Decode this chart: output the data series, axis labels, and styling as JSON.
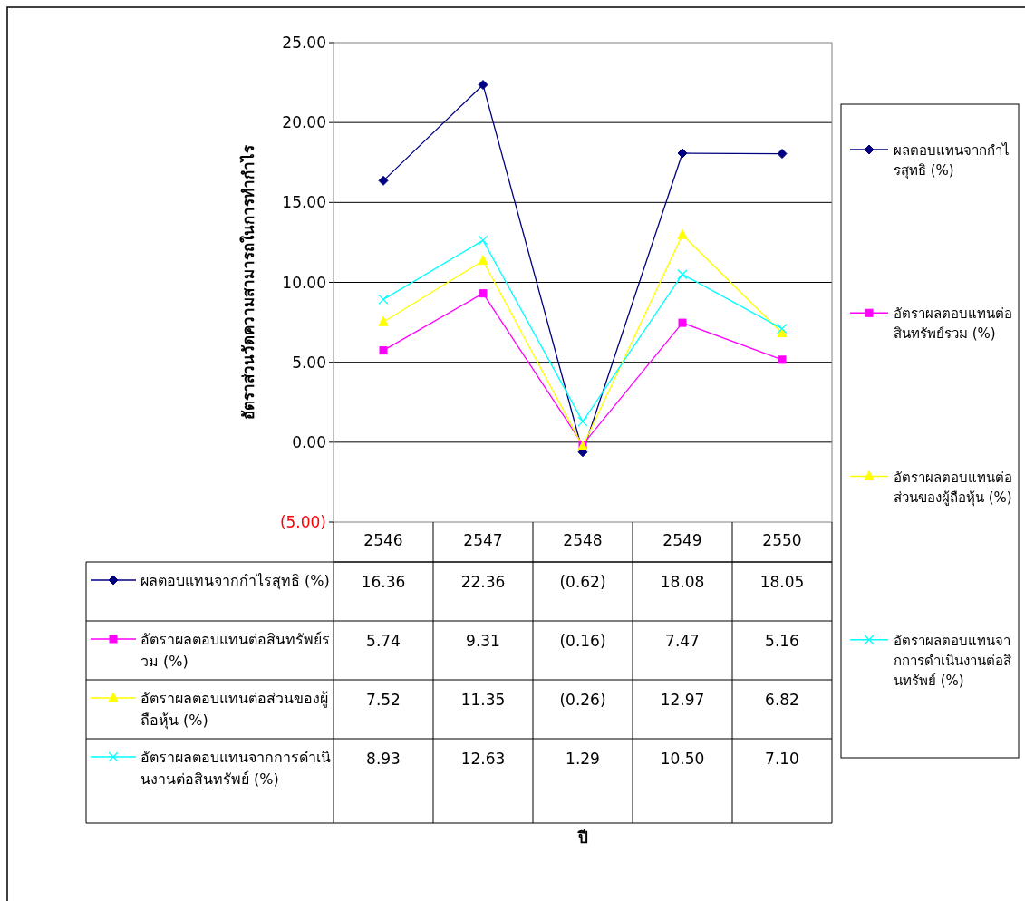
{
  "chart_data": {
    "type": "line",
    "ylabel": "อัตราส่วนวัดความสามารถในการทำกำไร",
    "annotations": [
      "ปี"
    ],
    "categories": [
      "2546",
      "2547",
      "2548",
      "2549",
      "2550"
    ],
    "series": [
      {
        "name": "ผลตอบแทนจากกำไรสุทธิ (%)",
        "color": "#000080",
        "marker": "diamond",
        "values": [
          16.36,
          22.36,
          -0.62,
          18.08,
          18.05
        ],
        "value_labels": [
          "16.36",
          "22.36",
          "(0.62)",
          "18.08",
          "18.05"
        ]
      },
      {
        "name": "อัตราผลตอบแทนต่อสินทรัพย์รวม (%)",
        "color": "#ff00ff",
        "marker": "square",
        "values": [
          5.74,
          9.31,
          -0.16,
          7.47,
          5.16
        ],
        "value_labels": [
          "5.74",
          "9.31",
          "(0.16)",
          "7.47",
          "5.16"
        ]
      },
      {
        "name": "อัตราผลตอบแทนต่อส่วนของผู้ถือหุ้น (%)",
        "color": "#ffff00",
        "marker": "triangle",
        "values": [
          7.52,
          11.35,
          -0.26,
          12.97,
          6.82
        ],
        "value_labels": [
          "7.52",
          "11.35",
          "(0.26)",
          "12.97",
          "6.82"
        ]
      },
      {
        "name": "อัตราผลตอบแทนจากการดำเนินงานต่อสินทรัพย์ (%)",
        "color": "#00ffff",
        "marker": "cross",
        "values": [
          8.93,
          12.63,
          1.29,
          10.5,
          7.1
        ],
        "value_labels": [
          "8.93",
          "12.63",
          "1.29",
          "10.50",
          "7.10"
        ]
      }
    ],
    "ylim": [
      -5,
      25
    ],
    "yticks": [
      {
        "value": -5,
        "label": "(5.00)"
      },
      {
        "value": 0,
        "label": "0.00"
      },
      {
        "value": 5,
        "label": "5.00"
      },
      {
        "value": 10,
        "label": "10.00"
      },
      {
        "value": 15,
        "label": "15.00"
      },
      {
        "value": 20,
        "label": "20.00"
      },
      {
        "value": 25,
        "label": "25.00"
      }
    ],
    "grid": "y",
    "legend": "right",
    "line_style": "solid"
  }
}
